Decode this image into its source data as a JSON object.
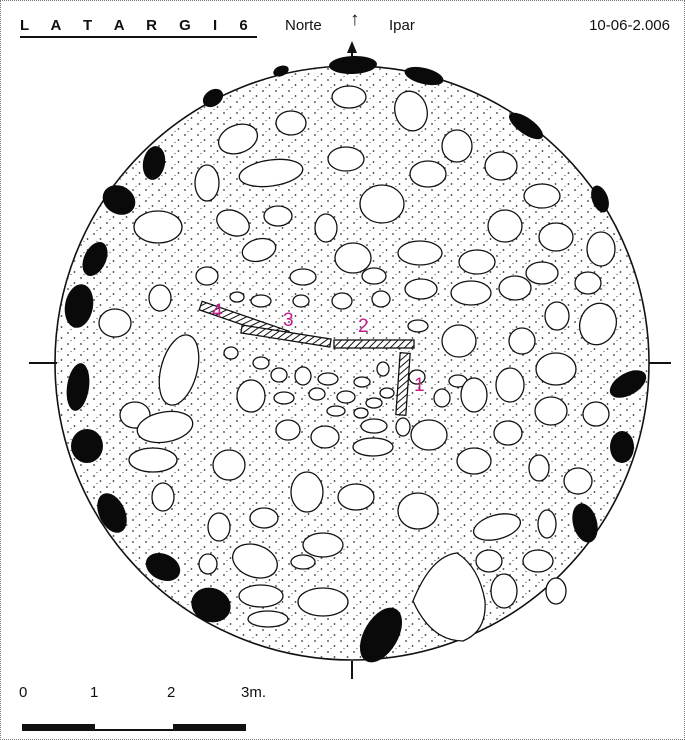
{
  "header": {
    "site_title": "L A T A R G I   6",
    "north_label": "Norte",
    "north_arrow_glyph": "↑",
    "ipar_label": "Ipar",
    "date": "10-06-2.006"
  },
  "stone_numbers": [
    "4",
    "3",
    "2",
    "1"
  ],
  "scale": {
    "labels": [
      "0",
      "1",
      "2",
      "3m."
    ]
  },
  "colors": {
    "ink": "#111111",
    "stone_number": "#c21d8a",
    "background": "#ffffff"
  },
  "icons": {
    "north_arrow": "north-arrow-icon"
  }
}
